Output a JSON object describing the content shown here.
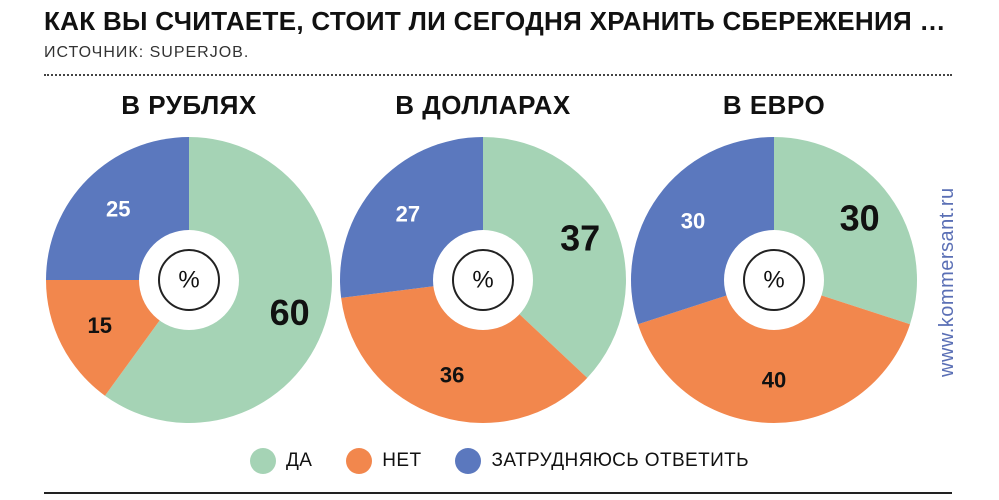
{
  "header": {
    "title": "КАК ВЫ СЧИТАЕТЕ, СТОИТ ЛИ СЕГОДНЯ ХРАНИТЬ СБЕРЕЖЕНИЯ …",
    "source": "ИСТОЧНИК: SUPERJOB."
  },
  "watermark": "www.kommersant.ru",
  "colors": {
    "yes": "#a5d3b5",
    "no": "#f2874d",
    "unsure": "#5b78be"
  },
  "chart_data": [
    {
      "type": "pie",
      "title": "В РУБЛЯХ",
      "center_label": "%",
      "labels": [
        "ДА",
        "НЕТ",
        "ЗАТРУДНЯЮСЬ ОТВЕТИТЬ"
      ],
      "values": [
        60,
        15,
        25
      ]
    },
    {
      "type": "pie",
      "title": "В ДОЛЛАРАХ",
      "center_label": "%",
      "labels": [
        "ДА",
        "НЕТ",
        "ЗАТРУДНЯЮСЬ ОТВЕТИТЬ"
      ],
      "values": [
        37,
        36,
        27
      ]
    },
    {
      "type": "pie",
      "title": "В ЕВРО",
      "center_label": "%",
      "labels": [
        "ДА",
        "НЕТ",
        "ЗАТРУДНЯЮСЬ ОТВЕТИТЬ"
      ],
      "values": [
        30,
        40,
        30
      ]
    }
  ],
  "legend": [
    {
      "label": "ДА",
      "color": "#a5d3b5"
    },
    {
      "label": "НЕТ",
      "color": "#f2874d"
    },
    {
      "label": "ЗАТРУДНЯЮСЬ ОТВЕТИТЬ",
      "color": "#5b78be"
    }
  ]
}
